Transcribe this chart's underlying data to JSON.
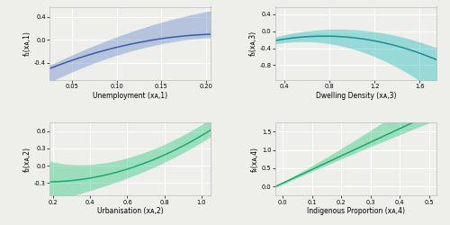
{
  "background_color": "#eeeeea",
  "panel_bg": "#eeeeea",
  "subplots": [
    {
      "xlabel": "Unemployment (xᴀ,1)",
      "ylabel": "f₁(xᴀ,1)",
      "x_range": [
        0.025,
        0.205
      ],
      "x_ticks": [
        0.05,
        0.1,
        0.15,
        0.2
      ],
      "x_tick_labels": [
        "0.05",
        "0.10",
        "0.15",
        "0.20"
      ],
      "y_range": [
        -0.7,
        0.58
      ],
      "y_ticks": [
        -0.4,
        0.0,
        0.4
      ],
      "y_tick_labels": [
        "-0.4",
        "0.0",
        "0.4"
      ],
      "mean_color": "#3a5ca8",
      "ci_color": "#7090cc",
      "ci_alpha": 0.45,
      "curve_type": "unemployment"
    },
    {
      "xlabel": "Dwelling Density (xᴀ,3)",
      "ylabel": "f₃(xᴀ,3)",
      "x_range": [
        0.32,
        1.75
      ],
      "x_ticks": [
        0.4,
        0.8,
        1.2,
        1.6
      ],
      "x_tick_labels": [
        "0.4",
        "0.8",
        "1.2",
        "1.6"
      ],
      "y_range": [
        -1.15,
        0.58
      ],
      "y_ticks": [
        -0.8,
        -0.4,
        0.0,
        0.4
      ],
      "y_tick_labels": [
        "-0.8",
        "-0.4",
        "0.0",
        "0.4"
      ],
      "mean_color": "#1a9090",
      "ci_color": "#30c0c0",
      "ci_alpha": 0.45,
      "curve_type": "density"
    },
    {
      "xlabel": "Urbanisation (xᴀ,2)",
      "ylabel": "f₂(xᴀ,2)",
      "x_range": [
        0.18,
        1.05
      ],
      "x_ticks": [
        0.2,
        0.4,
        0.6,
        0.8,
        1.0
      ],
      "x_tick_labels": [
        "0.2",
        "0.4",
        "0.6",
        "0.8",
        "1.0"
      ],
      "y_range": [
        -0.52,
        0.75
      ],
      "y_ticks": [
        -0.3,
        0.0,
        0.3,
        0.6
      ],
      "y_tick_labels": [
        "-0.3",
        "0.0",
        "0.3",
        "0.6"
      ],
      "mean_color": "#1aaa6a",
      "ci_color": "#35cc88",
      "ci_alpha": 0.45,
      "curve_type": "urbanisation"
    },
    {
      "xlabel": "Indigenous Proportion (xᴀ,4)",
      "ylabel": "f₄(xᴀ,4)",
      "x_range": [
        -0.025,
        0.525
      ],
      "x_ticks": [
        0.0,
        0.1,
        0.2,
        0.3,
        0.4,
        0.5
      ],
      "x_tick_labels": [
        "0.0",
        "0.1",
        "0.2",
        "0.3",
        "0.4",
        "0.5"
      ],
      "y_range": [
        -0.25,
        1.75
      ],
      "y_ticks": [
        0.0,
        0.5,
        1.0,
        1.5
      ],
      "y_tick_labels": [
        "0.0",
        "0.5",
        "1.0",
        "1.5"
      ],
      "mean_color": "#1aaa6a",
      "ci_color": "#35cc88",
      "ci_alpha": 0.45,
      "curve_type": "indigenous"
    }
  ]
}
